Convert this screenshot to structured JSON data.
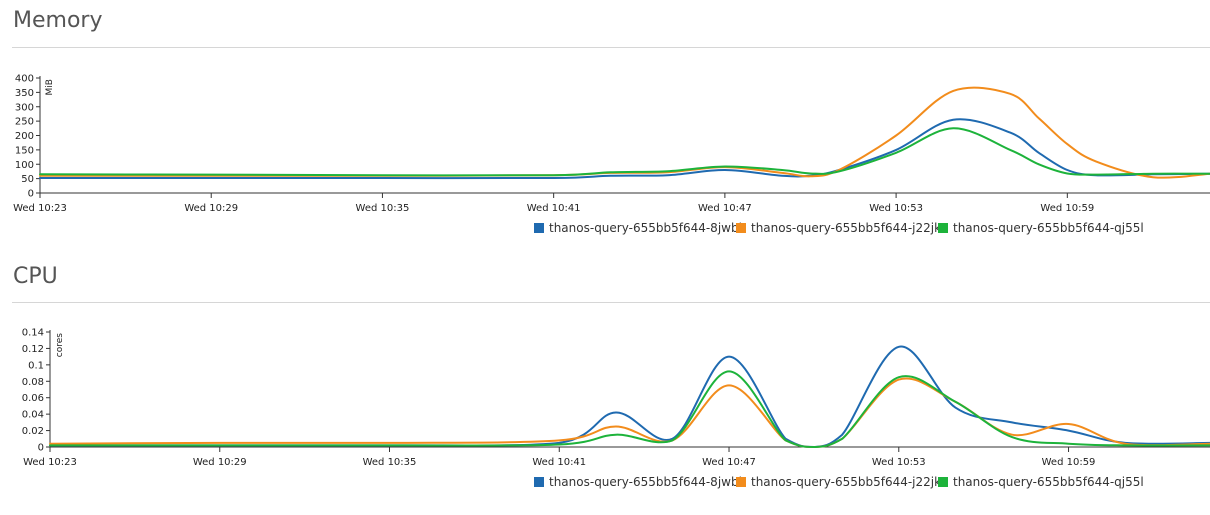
{
  "sections": {
    "memory": {
      "title": "Memory"
    },
    "cpu": {
      "title": "CPU"
    }
  },
  "chart_data": [
    {
      "type": "line",
      "title": "Memory",
      "ylabel": "MiB",
      "ylim": [
        0,
        400
      ],
      "y_ticks": [
        0,
        50,
        100,
        150,
        200,
        250,
        300,
        350,
        400
      ],
      "y_tick_labels": [
        "0",
        "50",
        "100",
        "150",
        "200",
        "250",
        "300",
        "350",
        "400"
      ],
      "xlim": [
        "10:23",
        "11:04"
      ],
      "x_ticks": [
        "10:23",
        "10:29",
        "10:35",
        "10:41",
        "10:47",
        "10:53",
        "10:59"
      ],
      "x_tick_labels": [
        "Wed 10:23",
        "Wed 10:29",
        "Wed 10:35",
        "Wed 10:41",
        "Wed 10:47",
        "Wed 10:53",
        "Wed 10:59"
      ],
      "grid": false,
      "legend_position": "bottom-right",
      "x": [
        "10:23",
        "10:29",
        "10:35",
        "10:41",
        "10:43",
        "10:45",
        "10:47",
        "10:49",
        "10:50",
        "10:51",
        "10:53",
        "10:55",
        "10:57",
        "10:58",
        "10:59",
        "11:00",
        "11:02",
        "11:04"
      ],
      "series": [
        {
          "name": "thanos-query-655bb5f644-8jwbl",
          "color": "#1f6ab0",
          "values": [
            52,
            52,
            52,
            52,
            60,
            62,
            80,
            60,
            60,
            80,
            150,
            255,
            210,
            140,
            80,
            62,
            65,
            67
          ]
        },
        {
          "name": "thanos-query-655bb5f644-j22jk",
          "color": "#f28c1c",
          "values": [
            60,
            60,
            60,
            62,
            70,
            72,
            90,
            70,
            58,
            80,
            200,
            355,
            345,
            260,
            170,
            110,
            55,
            67
          ]
        },
        {
          "name": "thanos-query-655bb5f644-qj55l",
          "color": "#1db33b",
          "values": [
            65,
            64,
            62,
            62,
            72,
            76,
            92,
            80,
            68,
            75,
            140,
            225,
            150,
            100,
            68,
            64,
            67,
            67
          ]
        }
      ]
    },
    {
      "type": "line",
      "title": "CPU",
      "ylabel": "cores",
      "ylim": [
        0,
        0.14
      ],
      "y_ticks": [
        0,
        0.02,
        0.04,
        0.06,
        0.08,
        0.1,
        0.12,
        0.14
      ],
      "y_tick_labels": [
        "0",
        "0.02",
        "0.04",
        "0.06",
        "0.08",
        "0.1",
        "0.12",
        "0.14"
      ],
      "xlim": [
        "10:23",
        "11:04"
      ],
      "x_ticks": [
        "10:23",
        "10:29",
        "10:35",
        "10:41",
        "10:47",
        "10:53",
        "10:59"
      ],
      "x_tick_labels": [
        "Wed 10:23",
        "Wed 10:29",
        "Wed 10:35",
        "Wed 10:41",
        "Wed 10:47",
        "Wed 10:53",
        "Wed 10:59"
      ],
      "grid": false,
      "legend_position": "bottom-right",
      "x": [
        "10:23",
        "10:29",
        "10:35",
        "10:41",
        "10:43",
        "10:45",
        "10:47",
        "10:49",
        "10:50",
        "10:51",
        "10:53",
        "10:55",
        "10:57",
        "10:59",
        "11:01",
        "11:04"
      ],
      "series": [
        {
          "name": "thanos-query-655bb5f644-8jwbl",
          "color": "#1f6ab0",
          "values": [
            0.002,
            0.002,
            0.002,
            0.005,
            0.042,
            0.01,
            0.11,
            0.01,
            0,
            0.015,
            0.122,
            0.048,
            0.03,
            0.02,
            0.005,
            0.005
          ]
        },
        {
          "name": "thanos-query-655bb5f644-j22jk",
          "color": "#f28c1c",
          "values": [
            0.004,
            0.005,
            0.005,
            0.008,
            0.025,
            0.008,
            0.075,
            0.008,
            0,
            0.01,
            0.082,
            0.055,
            0.015,
            0.028,
            0.004,
            0.004
          ]
        },
        {
          "name": "thanos-query-655bb5f644-qj55l",
          "color": "#1db33b",
          "values": [
            0.002,
            0.002,
            0.002,
            0.003,
            0.015,
            0.008,
            0.092,
            0.008,
            0,
            0.01,
            0.085,
            0.055,
            0.012,
            0.004,
            0.002,
            0.002
          ]
        }
      ]
    }
  ]
}
